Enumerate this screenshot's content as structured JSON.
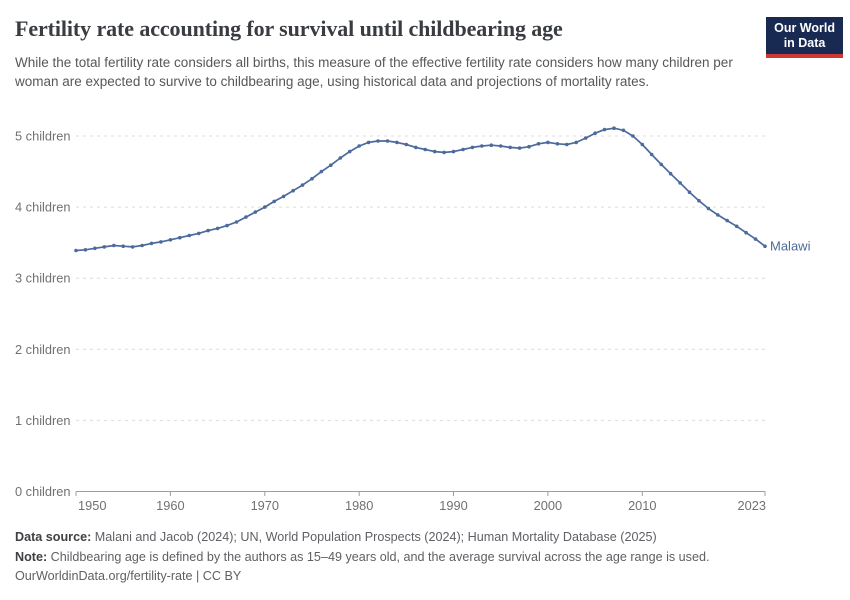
{
  "header": {
    "title": "Fertility rate accounting for survival until childbearing age",
    "subtitle": "While the total fertility rate considers all births, this measure of the effective fertility rate considers how many children per woman are expected to survive to childbearing age, using historical data and projections of mortality rates.",
    "logo": {
      "line1": "Our World",
      "line2": "in Data",
      "bg_color": "#182a52",
      "accent_color": "#cf3732"
    }
  },
  "chart_data": {
    "type": "line",
    "title": "Fertility rate accounting for survival until childbearing age",
    "x_start": 1950,
    "x_end": 2023,
    "ylim": [
      0,
      5
    ],
    "grid": "horizontal-dashed",
    "x_ticks": [
      "1950",
      "1960",
      "1970",
      "1980",
      "1990",
      "2000",
      "2010",
      "2023"
    ],
    "y_ticks": [
      {
        "value": 0,
        "label": "0 children"
      },
      {
        "value": 1,
        "label": "1 children"
      },
      {
        "value": 2,
        "label": "2 children"
      },
      {
        "value": 3,
        "label": "3 children"
      },
      {
        "value": 4,
        "label": "4 children"
      },
      {
        "value": 5,
        "label": "5 children"
      }
    ],
    "series": [
      {
        "name": "Malawi",
        "color": "#4c6a9c",
        "values": [
          3.39,
          3.4,
          3.42,
          3.44,
          3.46,
          3.45,
          3.44,
          3.46,
          3.49,
          3.51,
          3.54,
          3.57,
          3.6,
          3.63,
          3.67,
          3.7,
          3.74,
          3.79,
          3.86,
          3.93,
          4.0,
          4.08,
          4.15,
          4.23,
          4.31,
          4.4,
          4.5,
          4.59,
          4.69,
          4.78,
          4.86,
          4.91,
          4.93,
          4.93,
          4.91,
          4.88,
          4.84,
          4.81,
          4.78,
          4.77,
          4.78,
          4.81,
          4.84,
          4.86,
          4.87,
          4.86,
          4.84,
          4.83,
          4.85,
          4.89,
          4.91,
          4.89,
          4.88,
          4.91,
          4.97,
          5.04,
          5.09,
          5.11,
          5.08,
          5.0,
          4.88,
          4.74,
          4.6,
          4.47,
          4.34,
          4.21,
          4.09,
          3.98,
          3.89,
          3.81,
          3.73,
          3.64,
          3.55,
          3.45
        ]
      }
    ]
  },
  "footer": {
    "data_source_label": "Data source:",
    "data_source_text": " Malani and Jacob (2024); UN, World Population Prospects (2024); Human Mortality Database (2025)",
    "note_label": "Note:",
    "note_text": " Childbearing age is defined by the authors as 15–49 years old, and the average survival across the age range is used.",
    "url_line": "OurWorldinData.org/fertility-rate | CC BY"
  }
}
